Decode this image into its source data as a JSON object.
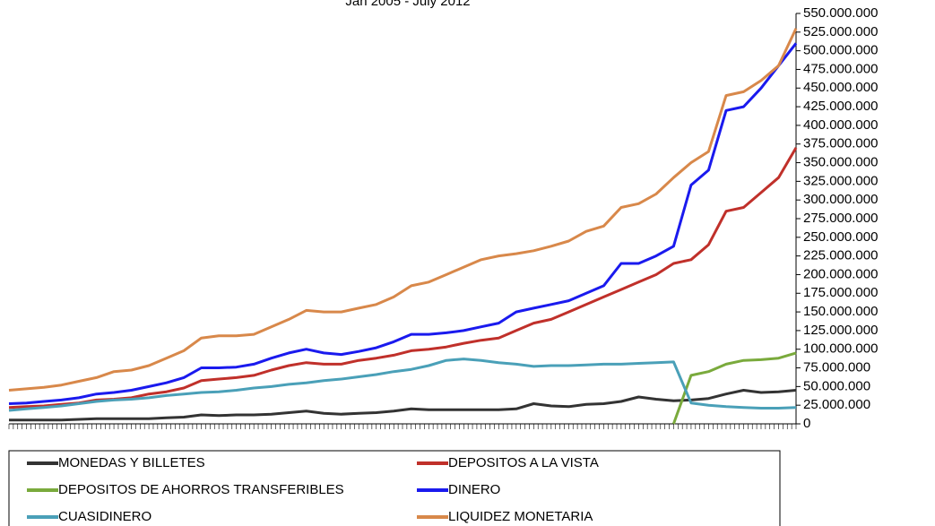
{
  "chart_data": {
    "type": "line",
    "title": "Jan 2005 - July 2012",
    "categories": [
      null,
      null,
      null,
      null,
      null,
      null,
      null,
      null,
      null,
      null,
      null,
      null,
      null,
      null,
      null,
      null,
      null,
      null,
      null,
      null,
      null,
      null,
      null,
      null,
      null,
      null,
      null,
      null,
      null,
      null,
      null,
      null,
      null,
      null,
      null,
      null,
      null,
      null,
      null,
      null,
      null,
      null,
      null,
      null,
      null,
      null
    ],
    "series": [
      {
        "name": "MONEDAS Y BILLETES",
        "color": "#333333",
        "values": [
          5000000,
          5000000,
          5000000,
          5000000,
          6000000,
          7000000,
          7000000,
          7000000,
          7000000,
          8000000,
          9000000,
          12000000,
          11000000,
          12000000,
          12000000,
          13000000,
          15000000,
          17000000,
          14000000,
          13000000,
          14000000,
          15000000,
          17000000,
          20000000,
          19000000,
          19000000,
          19000000,
          19000000,
          19000000,
          20000000,
          27000000,
          24000000,
          23000000,
          26000000,
          27000000,
          30000000,
          36000000,
          33000000,
          31000000,
          32000000,
          34000000,
          40000000,
          45000000,
          42000000,
          43000000,
          45000000
        ]
      },
      {
        "name": "DEPOSITOS A LA VISTA",
        "color": "#c0302a",
        "values": [
          22000000,
          23000000,
          24000000,
          26000000,
          28000000,
          32000000,
          33000000,
          35000000,
          40000000,
          43000000,
          48000000,
          58000000,
          60000000,
          62000000,
          65000000,
          72000000,
          78000000,
          82000000,
          80000000,
          80000000,
          85000000,
          88000000,
          92000000,
          98000000,
          100000000,
          103000000,
          108000000,
          112000000,
          115000000,
          125000000,
          135000000,
          140000000,
          150000000,
          160000000,
          170000000,
          180000000,
          190000000,
          200000000,
          215000000,
          220000000,
          240000000,
          285000000,
          290000000,
          310000000,
          330000000,
          370000000
        ]
      },
      {
        "name": "DEPOSITOS DE AHORROS TRANSFERIBLES",
        "color": "#7aaa3c",
        "values": [
          null,
          null,
          null,
          null,
          null,
          null,
          null,
          null,
          null,
          null,
          null,
          null,
          null,
          null,
          null,
          null,
          null,
          null,
          null,
          null,
          null,
          null,
          null,
          null,
          null,
          null,
          null,
          null,
          null,
          null,
          null,
          null,
          null,
          null,
          null,
          null,
          null,
          null,
          0,
          65000000,
          70000000,
          80000000,
          85000000,
          86000000,
          88000000,
          95000000
        ]
      },
      {
        "name": "DINERO",
        "color": "#1a1aee",
        "values": [
          27000000,
          28000000,
          30000000,
          32000000,
          35000000,
          40000000,
          42000000,
          45000000,
          50000000,
          55000000,
          62000000,
          75000000,
          75000000,
          76000000,
          80000000,
          88000000,
          95000000,
          100000000,
          95000000,
          93000000,
          97000000,
          102000000,
          110000000,
          120000000,
          120000000,
          122000000,
          125000000,
          130000000,
          135000000,
          150000000,
          155000000,
          160000000,
          165000000,
          175000000,
          185000000,
          215000000,
          215000000,
          225000000,
          238000000,
          320000000,
          340000000,
          420000000,
          425000000,
          450000000,
          480000000,
          510000000
        ]
      },
      {
        "name": "CUASIDINERO",
        "color": "#4aa0b8",
        "values": [
          18000000,
          20000000,
          22000000,
          24000000,
          27000000,
          30000000,
          32000000,
          33000000,
          35000000,
          38000000,
          40000000,
          42000000,
          43000000,
          45000000,
          48000000,
          50000000,
          53000000,
          55000000,
          58000000,
          60000000,
          63000000,
          66000000,
          70000000,
          73000000,
          78000000,
          85000000,
          87000000,
          85000000,
          82000000,
          80000000,
          77000000,
          78000000,
          78000000,
          79000000,
          80000000,
          80000000,
          81000000,
          82000000,
          83000000,
          28000000,
          25000000,
          23000000,
          22000000,
          21000000,
          21000000,
          22000000
        ]
      },
      {
        "name": "LIQUIDEZ MONETARIA",
        "color": "#d8884a",
        "values": [
          45000000,
          47000000,
          49000000,
          52000000,
          57000000,
          62000000,
          70000000,
          72000000,
          78000000,
          88000000,
          98000000,
          115000000,
          118000000,
          118000000,
          120000000,
          130000000,
          140000000,
          152000000,
          150000000,
          150000000,
          155000000,
          160000000,
          170000000,
          185000000,
          190000000,
          200000000,
          210000000,
          220000000,
          225000000,
          228000000,
          232000000,
          238000000,
          245000000,
          258000000,
          265000000,
          290000000,
          295000000,
          308000000,
          330000000,
          350000000,
          365000000,
          440000000,
          445000000,
          460000000,
          480000000,
          530000000
        ]
      }
    ],
    "ylim": [
      0,
      550000000
    ],
    "yticks": [
      0,
      {
        "value": 25000000,
        "label": "25.000.000"
      },
      {
        "value": 50000000,
        "label": "50.000.000"
      },
      {
        "value": 75000000,
        "label": "75.000.000"
      },
      {
        "value": 100000000,
        "label": "100.000.000"
      },
      {
        "value": 125000000,
        "label": "125.000.000"
      },
      {
        "value": 150000000,
        "label": "150.000.000"
      },
      {
        "value": 175000000,
        "label": "175.000.000"
      },
      {
        "value": 200000000,
        "label": "200.000.000"
      },
      {
        "value": 225000000,
        "label": "225.000.000"
      },
      {
        "value": 250000000,
        "label": "250.000.000"
      },
      {
        "value": 275000000,
        "label": "275.000.000"
      },
      {
        "value": 300000000,
        "label": "300.000.000"
      },
      {
        "value": 325000000,
        "label": "325.000.000"
      },
      {
        "value": 350000000,
        "label": "350.000.000"
      },
      {
        "value": 375000000,
        "label": "375.000.000"
      },
      {
        "value": 400000000,
        "label": "400.000.000"
      },
      {
        "value": 425000000,
        "label": "425.000.000"
      },
      {
        "value": 450000000,
        "label": "450.000.000"
      },
      {
        "value": 475000000,
        "label": "475.000.000"
      },
      {
        "value": 500000000,
        "label": "500.000.000"
      },
      {
        "value": 525000000,
        "label": "525.000.000"
      },
      {
        "value": 550000000,
        "label": "550.000.000"
      }
    ],
    "grid": false,
    "y_axis_side": "right"
  }
}
